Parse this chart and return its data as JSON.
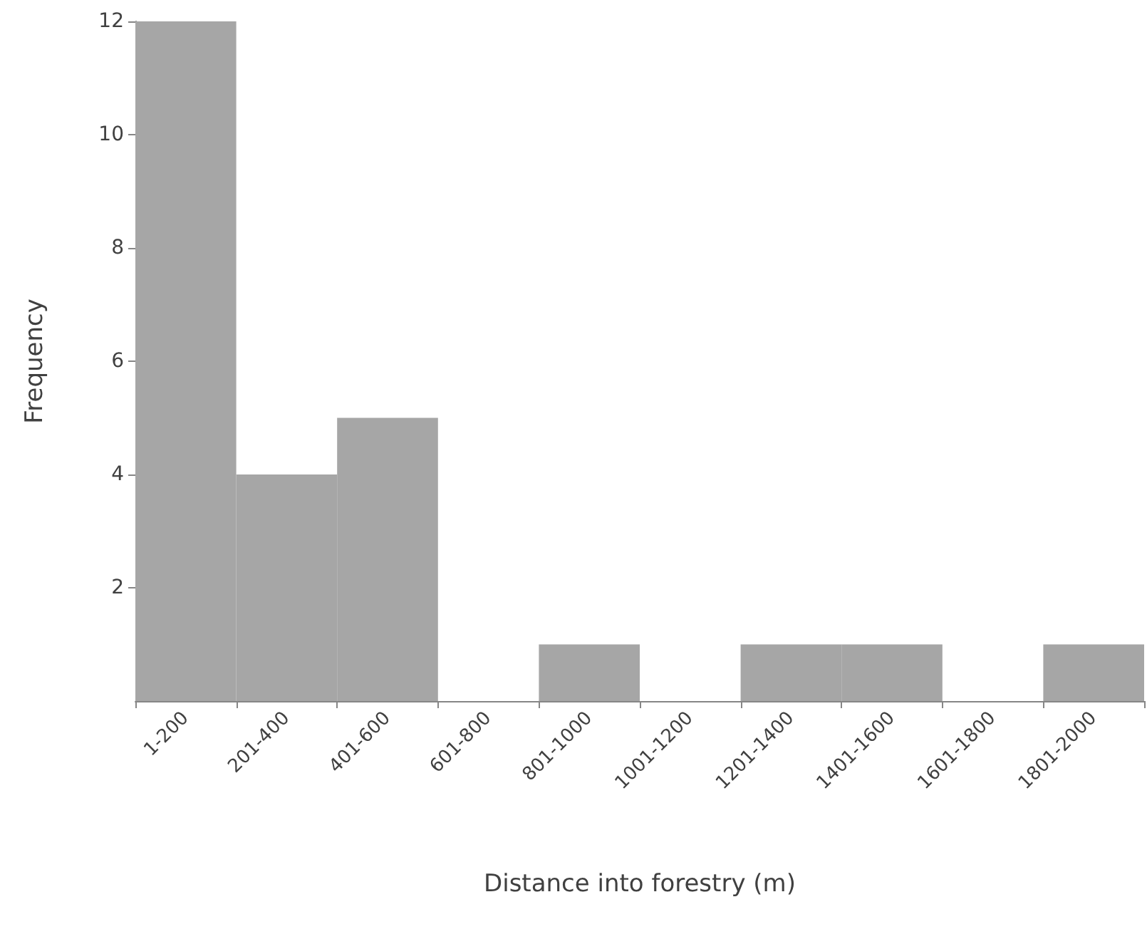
{
  "chart_data": {
    "type": "bar",
    "xlabel": "Distance into forestry (m)",
    "ylabel": "Frequency",
    "categories": [
      "1-200",
      "201-400",
      "401-600",
      "601-800",
      "801-1000",
      "1001-1200",
      "1201-1400",
      "1401-1600",
      "1601-1800",
      "1801-2000"
    ],
    "values": [
      12,
      4,
      5,
      0,
      1,
      0,
      1,
      1,
      0,
      1
    ],
    "color": "#a6a6a6",
    "ylim": [
      0,
      12
    ],
    "yticks": [
      2,
      4,
      6,
      8,
      10,
      12
    ]
  }
}
